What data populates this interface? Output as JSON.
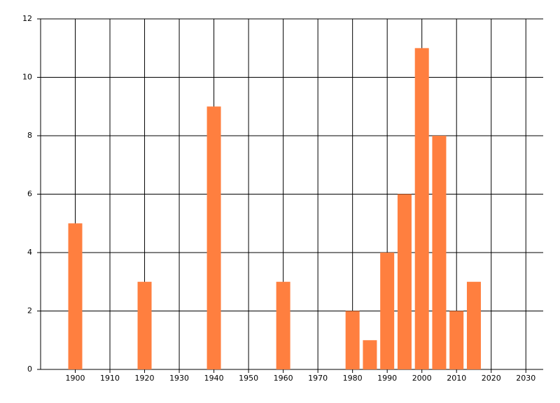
{
  "chart_data": {
    "type": "bar",
    "x": [
      1900,
      1920,
      1940,
      1960,
      1980,
      1985,
      1990,
      1995,
      2000,
      2005,
      2010,
      2015
    ],
    "values": [
      5,
      3,
      9,
      3,
      2,
      1,
      4,
      6,
      11,
      8,
      2,
      3
    ],
    "color": "#ff7f3f",
    "xlim": [
      1890,
      2035
    ],
    "xticks": [
      1900,
      1910,
      1920,
      1930,
      1940,
      1950,
      1960,
      1970,
      1980,
      1990,
      2000,
      2010,
      2020,
      2030
    ],
    "ylim": [
      0,
      12
    ],
    "yticks": [
      0,
      2,
      4,
      6,
      8,
      10,
      12
    ],
    "grid": true
  }
}
